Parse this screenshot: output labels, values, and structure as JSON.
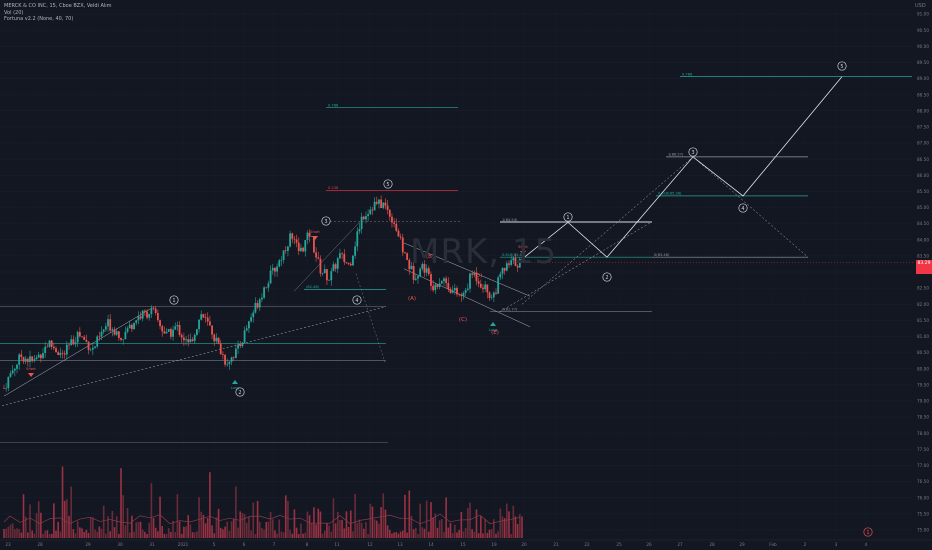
{
  "header": {
    "symbol_line": "MERCK & CO INC, 15, Cboe BZX, Veldi Alım",
    "indicator1": "Vol (20)",
    "indicator2": "Fortuna v2.2 (None, 40, 70)",
    "currency": "USD"
  },
  "watermark": {
    "ticker": "MRK",
    "interval": "15"
  },
  "current_price": {
    "value": "83.29",
    "color": "#f23645"
  },
  "colors": {
    "background": "#131722",
    "up": "#26a69a",
    "down": "#ef5350",
    "wave": "#e0e3eb",
    "fib_teal": "#26a69a",
    "fib_red": "#f23645",
    "volume": "#b5364a"
  },
  "chart_data": {
    "type": "candlestick",
    "price_axis": {
      "ylim": [
        74.75,
        91.25
      ],
      "ticks": [
        "75.00",
        "75.50",
        "76.00",
        "76.50",
        "77.00",
        "77.50",
        "78.00",
        "78.50",
        "79.00",
        "79.50",
        "80.00",
        "80.50",
        "81.00",
        "81.50",
        "82.00",
        "82.50",
        "83.00",
        "83.50",
        "84.00",
        "84.50",
        "85.00",
        "85.50",
        "86.00",
        "86.50",
        "87.00",
        "87.50",
        "88.00",
        "88.50",
        "89.00",
        "89.50",
        "90.00",
        "90.50",
        "91.00"
      ]
    },
    "time_axis": {
      "ticks": [
        "23",
        "28",
        "29",
        "30",
        "31",
        "2021",
        "5",
        "6",
        "7",
        "8",
        "11",
        "12",
        "13",
        "14",
        "15",
        "19",
        "20",
        "21",
        "22",
        "25",
        "26",
        "27",
        "28",
        "29",
        "Feb",
        "2",
        "3",
        "4"
      ]
    },
    "price_path": [
      {
        "t": 0,
        "p": 79.4
      },
      {
        "t": 3,
        "p": 79.9
      },
      {
        "t": 7,
        "p": 80.4
      },
      {
        "t": 12,
        "p": 80.2
      },
      {
        "t": 18,
        "p": 80.8
      },
      {
        "t": 24,
        "p": 80.4
      },
      {
        "t": 30,
        "p": 81.1
      },
      {
        "t": 36,
        "p": 80.6
      },
      {
        "t": 42,
        "p": 81.4
      },
      {
        "t": 48,
        "p": 81.0
      },
      {
        "t": 54,
        "p": 81.6
      },
      {
        "t": 60,
        "p": 81.8
      },
      {
        "t": 66,
        "p": 81.0
      },
      {
        "t": 70,
        "p": 81.3
      },
      {
        "t": 75,
        "p": 80.7
      },
      {
        "t": 80,
        "p": 81.7
      },
      {
        "t": 84,
        "p": 81.2
      },
      {
        "t": 90,
        "p": 80.2
      },
      {
        "t": 95,
        "p": 80.6
      },
      {
        "t": 100,
        "p": 81.6
      },
      {
        "t": 106,
        "p": 82.6
      },
      {
        "t": 112,
        "p": 83.4
      },
      {
        "t": 116,
        "p": 84.1
      },
      {
        "t": 120,
        "p": 83.6
      },
      {
        "t": 124,
        "p": 84.2
      },
      {
        "t": 128,
        "p": 83.1
      },
      {
        "t": 132,
        "p": 82.8
      },
      {
        "t": 136,
        "p": 83.5
      },
      {
        "t": 140,
        "p": 83.2
      },
      {
        "t": 145,
        "p": 84.7
      },
      {
        "t": 150,
        "p": 85.1
      },
      {
        "t": 154,
        "p": 85.1
      },
      {
        "t": 158,
        "p": 84.6
      },
      {
        "t": 162,
        "p": 83.6
      },
      {
        "t": 166,
        "p": 82.9
      },
      {
        "t": 170,
        "p": 83.2
      },
      {
        "t": 174,
        "p": 82.6
      },
      {
        "t": 178,
        "p": 82.8
      },
      {
        "t": 182,
        "p": 82.4
      },
      {
        "t": 186,
        "p": 82.2
      },
      {
        "t": 190,
        "p": 83.0
      },
      {
        "t": 194,
        "p": 82.6
      },
      {
        "t": 198,
        "p": 82.2
      },
      {
        "t": 202,
        "p": 83.0
      },
      {
        "t": 206,
        "p": 83.3
      },
      {
        "t": 210,
        "p": 83.3
      }
    ],
    "fib_levels": [
      {
        "label": "0.786",
        "price": "89.06",
        "color": "teal"
      },
      {
        "label": "0.786",
        "price": "88.10",
        "color": "teal"
      },
      {
        "label": "0.236",
        "price": "85.53",
        "color": "red"
      },
      {
        "label": "1(84.54)",
        "price": "84.54",
        "color": "gray"
      },
      {
        "label": "0.618(83.46)",
        "price": "83.46",
        "color": "teal"
      },
      {
        "label": "1(86.57)",
        "price": "86.57",
        "color": "gray"
      },
      {
        "label": "0.618(85.36)",
        "price": "85.36",
        "color": "teal"
      },
      {
        "label": "0(83.46)",
        "price": "83.46",
        "color": "gray"
      },
      {
        "label": "0(81.77)",
        "price": "81.77",
        "color": "gray"
      },
      {
        "label": "(82.46)",
        "price": "82.46",
        "color": "teal"
      }
    ],
    "wave_labels": {
      "impulse": [
        "1",
        "2",
        "3",
        "4",
        "5"
      ],
      "correction": [
        "(A)",
        "(B)",
        "(C)",
        "(D)",
        "(E)"
      ],
      "projection": [
        "1",
        "2",
        "3",
        "4",
        "5"
      ],
      "signals": [
        "Short",
        "Short",
        "Short",
        "Long",
        "Long"
      ]
    }
  }
}
